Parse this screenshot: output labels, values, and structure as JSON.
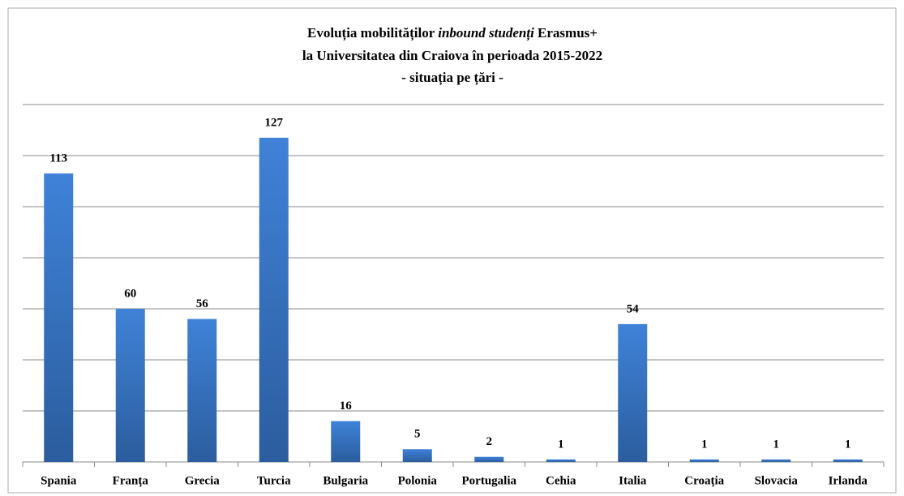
{
  "chart_data": {
    "type": "bar",
    "title": [
      [
        "Evoluția mobilităților",
        "inbound studenți",
        "Erasmus+"
      ],
      "la Universitatea din Craiova în perioada 2015-2022",
      "- situația pe țări -"
    ],
    "categories": [
      "Spania",
      "Franța",
      "Grecia",
      "Turcia",
      "Bulgaria",
      "Polonia",
      "Portugalia",
      "Cehia",
      "Italia",
      "Croația",
      "Slovacia",
      "Irlanda"
    ],
    "values": [
      113,
      60,
      56,
      127,
      16,
      5,
      2,
      1,
      54,
      1,
      1,
      1
    ],
    "color": "#3a7bd0",
    "ylim": [
      0,
      140
    ],
    "yticks": [
      0,
      20,
      40,
      60,
      80,
      100,
      120,
      140
    ],
    "grid": true
  }
}
